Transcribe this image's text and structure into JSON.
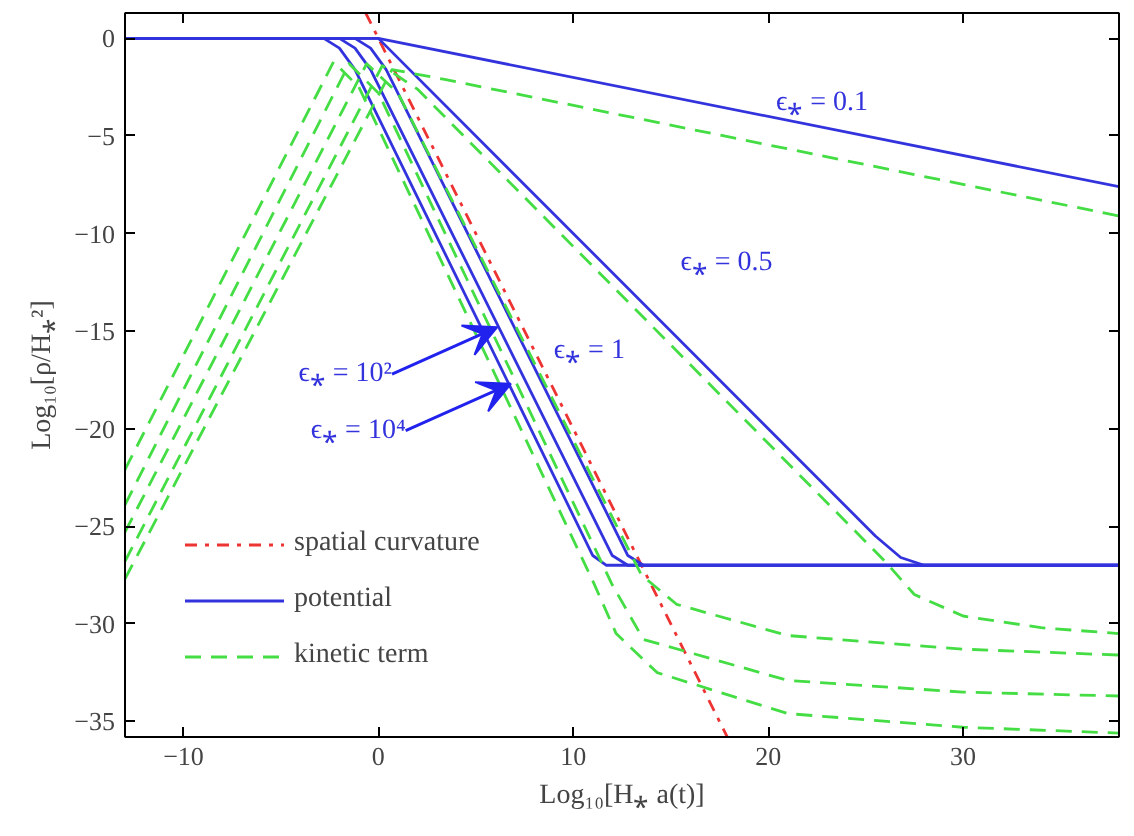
{
  "chart_data": {
    "type": "line",
    "xlabel": "Log₁₀[H⁎ a(t)]",
    "ylabel": "Log₁₀[ρ/H⁎²]",
    "xlim": [
      -13,
      38
    ],
    "ylim": [
      -35.8,
      1.3
    ],
    "xticks": [
      -10,
      0,
      10,
      20,
      30
    ],
    "yticks": [
      -35,
      -30,
      -25,
      -20,
      -15,
      -10,
      -5,
      0
    ],
    "grid": false,
    "legend": "bottom left",
    "series": [
      {
        "name": "spatial curvature",
        "color": "#ee3333",
        "line_style": "dashdot",
        "x": [
          -0.65,
          17.9
        ],
        "values": [
          1.3,
          -35.8
        ]
      },
      {
        "name": "potential",
        "color": "#3333dd",
        "line_style": "solid",
        "x": [
          -13,
          -2.8,
          -2,
          -1.2,
          11,
          11.7,
          38
        ],
        "values": [
          0,
          0,
          -0.5,
          -1.6,
          -26.5,
          -27,
          -27
        ]
      },
      {
        "color": "#3333dd",
        "line_style": "solid",
        "x": [
          -13,
          -2,
          -1.2,
          -0.4,
          12,
          12.8,
          38
        ],
        "values": [
          0,
          0,
          -0.5,
          -1.6,
          -26.5,
          -27,
          -27
        ]
      },
      {
        "color": "#3333dd",
        "line_style": "solid",
        "x": [
          -13,
          -1.2,
          -0.4,
          0.4,
          12.8,
          13.6,
          38
        ],
        "values": [
          0,
          0,
          -0.5,
          -1.6,
          -26.5,
          -27,
          -27
        ]
      },
      {
        "color": "#3333dd",
        "line_style": "solid",
        "x": [
          -13,
          0,
          25.5,
          26.8,
          28,
          38
        ],
        "values": [
          0,
          0,
          -25.5,
          -26.6,
          -27,
          -27
        ]
      },
      {
        "color": "#3333dd",
        "line_style": "solid",
        "x": [
          -13,
          0,
          38
        ],
        "values": [
          0,
          0,
          -7.6
        ]
      },
      {
        "name": "kinetic term",
        "color": "#44dd44",
        "line_style": "dashed",
        "x": [
          -13,
          -2.3,
          -1,
          11,
          12.2,
          14.3,
          21,
          30,
          38
        ],
        "values": [
          -22.1,
          -1.2,
          -2.5,
          -27.8,
          -30.5,
          -32.5,
          -34.6,
          -35.3,
          -35.6
        ]
      },
      {
        "color": "#44dd44",
        "line_style": "dashed",
        "x": [
          -13,
          -1.5,
          0,
          12,
          13.6,
          21,
          30,
          38
        ],
        "values": [
          -23.9,
          -1.3,
          -2.8,
          -28,
          -30.8,
          -32.9,
          -33.5,
          -33.7
        ]
      },
      {
        "color": "#44dd44",
        "line_style": "dashed",
        "x": [
          -13,
          -0.6,
          1,
          13.5,
          15.3,
          21,
          30,
          38
        ],
        "values": [
          -25.3,
          -1.3,
          -2.8,
          -27.5,
          -29,
          -30.6,
          -31.3,
          -31.6
        ]
      },
      {
        "color": "#44dd44",
        "line_style": "dashed",
        "x": [
          -13,
          0.2,
          2,
          26,
          27.5,
          30,
          34,
          38
        ],
        "values": [
          -26.8,
          -1.4,
          -2.6,
          -26.8,
          -28.5,
          -29.6,
          -30.2,
          -30.5
        ]
      },
      {
        "color": "#44dd44",
        "line_style": "dashed",
        "x": [
          -13,
          0.7,
          3.4,
          38
        ],
        "values": [
          -27.7,
          -1.6,
          -2.1,
          -9.1
        ]
      }
    ],
    "annotations": [
      "ϵ⁎ = 0.1",
      "ϵ⁎ = 0.5",
      "ϵ⁎ = 1",
      {
        "text": "ϵ⁎ = 10²",
        "x": 6.1,
        "y": -14.8
      },
      {
        "text": "ϵ⁎ = 10⁴",
        "x": 6.8,
        "y": -17.7
      }
    ]
  }
}
